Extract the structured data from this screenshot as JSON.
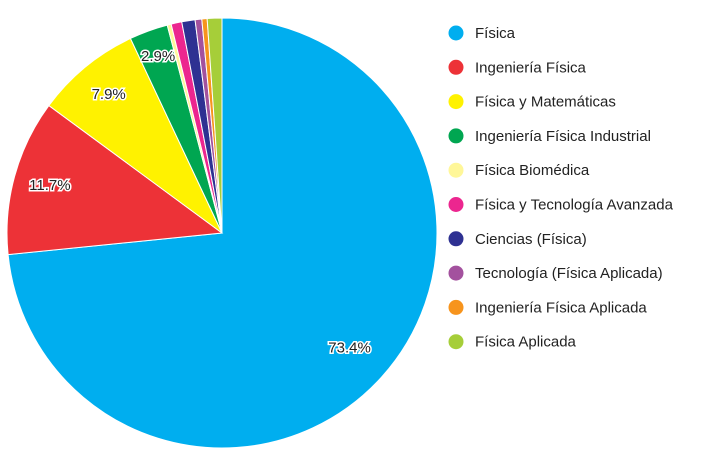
{
  "chart_data": {
    "type": "pie",
    "categories": [
      "Física",
      "Ingeniería Física",
      "Física y Matemáticas",
      "Ingeniería Física Industrial",
      "Física Biomédica",
      "Física y Tecnología Avanzada",
      "Ciencias (Física)",
      "Tecnología (Física Aplicada)",
      "Ingeniería Física Aplicada",
      "Física Aplicada"
    ],
    "values": [
      73.4,
      11.7,
      7.9,
      2.9,
      0.3,
      0.8,
      1.0,
      0.5,
      0.4,
      1.1
    ],
    "value_labels": [
      "73.4%",
      "11.7%",
      "7.9%",
      "2.9%",
      null,
      null,
      null,
      null,
      null,
      null
    ],
    "colors": [
      "#00aeef",
      "#ed3237",
      "#fff200",
      "#00a651",
      "#fff799",
      "#ec268f",
      "#2e3192",
      "#a3519e",
      "#f7941d",
      "#a6ce39"
    ],
    "legend": "right"
  }
}
